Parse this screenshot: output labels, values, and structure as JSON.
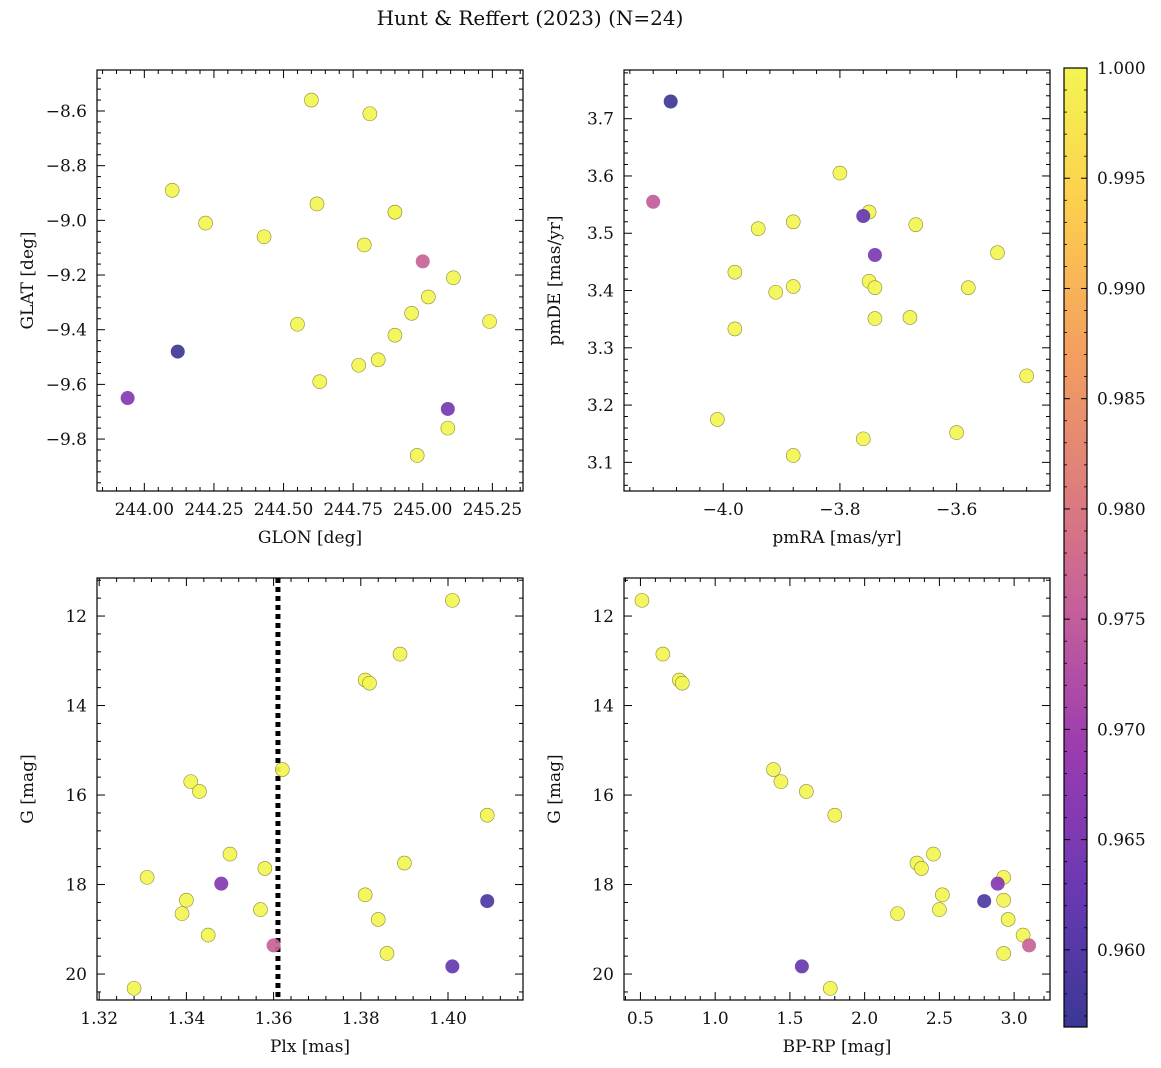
{
  "figure_title": "Hunt & Reffert (2023) (N=24)",
  "colorbar": {
    "min": 0.9565,
    "max": 1.0,
    "ticks": [
      0.96,
      0.965,
      0.97,
      0.975,
      0.98,
      0.985,
      0.99,
      0.995,
      1.0
    ],
    "tick_labels": [
      "0.960",
      "0.965",
      "0.970",
      "0.975",
      "0.980",
      "0.985",
      "0.990",
      "0.995",
      "1.000"
    ],
    "colormap": "plasma",
    "cmap_stops": [
      "#3a3894",
      "#6a39b3",
      "#9a3bb0",
      "#c35e9c",
      "#e0807a",
      "#f4a25e",
      "#fdce4e",
      "#f3f552"
    ]
  },
  "chart_data": [
    {
      "type": "scatter",
      "id": "p1",
      "xlabel": "GLON [deg]",
      "ylabel": "GLAT [deg]",
      "xlim": [
        243.83,
        245.36
      ],
      "ylim": [
        -9.99,
        -8.45
      ],
      "yinvert": false,
      "xticks": [
        244.0,
        244.25,
        244.5,
        244.75,
        245.0,
        245.25
      ],
      "xtick_labels": [
        "244.00",
        "244.25",
        "244.50",
        "244.75",
        "245.00",
        "245.25"
      ],
      "yticks": [
        -9.8,
        -9.6,
        -9.4,
        -9.2,
        -9.0,
        -8.8,
        -8.6
      ],
      "ytick_labels": [
        "−9.8",
        "−9.6",
        "−9.4",
        "−9.2",
        "−9.0",
        "−8.8",
        "−8.6"
      ],
      "x": [
        244.6,
        244.81,
        244.1,
        244.22,
        244.62,
        244.9,
        244.43,
        244.79,
        245.0,
        245.11,
        245.02,
        244.55,
        244.96,
        244.9,
        244.84,
        244.77,
        244.63,
        245.24,
        244.12,
        243.94,
        245.09,
        245.09,
        244.98,
        244.9
      ],
      "y": [
        -8.56,
        -8.61,
        -8.89,
        -9.01,
        -8.94,
        -8.97,
        -9.06,
        -9.09,
        -9.15,
        -9.21,
        -9.28,
        -9.38,
        -9.34,
        -9.42,
        -9.51,
        -9.53,
        -9.59,
        -9.37,
        -9.48,
        -9.65,
        -9.69,
        -9.76,
        -9.86,
        -8.97
      ],
      "c": [
        1.0,
        1.0,
        1.0,
        1.0,
        1.0,
        1.0,
        1.0,
        1.0,
        0.976,
        1.0,
        1.0,
        1.0,
        1.0,
        1.0,
        1.0,
        1.0,
        1.0,
        1.0,
        0.957,
        0.966,
        0.964,
        1.0,
        1.0,
        1.0
      ]
    },
    {
      "type": "scatter",
      "id": "p2",
      "xlabel": "pmRA [mas/yr]",
      "ylabel": "pmDE [mas/yr]",
      "xlim": [
        -4.17,
        -3.44
      ],
      "ylim": [
        3.05,
        3.785
      ],
      "yinvert": false,
      "xticks": [
        -4.0,
        -3.8,
        -3.6
      ],
      "xtick_labels": [
        "−4.0",
        "−3.8",
        "−3.6"
      ],
      "yticks": [
        3.1,
        3.2,
        3.3,
        3.4,
        3.5,
        3.6,
        3.7
      ],
      "ytick_labels": [
        "3.1",
        "3.2",
        "3.3",
        "3.4",
        "3.5",
        "3.6",
        "3.7"
      ],
      "x": [
        -4.09,
        -4.12,
        -3.8,
        -3.76,
        -3.75,
        -3.74,
        -3.94,
        -3.88,
        -3.67,
        -3.98,
        -3.91,
        -3.88,
        -3.75,
        -3.74,
        -3.74,
        -3.53,
        -3.58,
        -3.68,
        -3.98,
        -3.48,
        -4.01,
        -3.6,
        -3.76,
        -3.88
      ],
      "y": [
        3.73,
        3.555,
        3.605,
        3.53,
        3.537,
        3.462,
        3.508,
        3.52,
        3.515,
        3.432,
        3.397,
        3.407,
        3.416,
        3.405,
        3.351,
        3.466,
        3.405,
        3.353,
        3.333,
        3.251,
        3.175,
        3.152,
        3.141,
        3.112
      ],
      "c": [
        0.957,
        0.975,
        1.0,
        0.962,
        1.0,
        0.965,
        1.0,
        1.0,
        1.0,
        1.0,
        1.0,
        1.0,
        1.0,
        1.0,
        1.0,
        1.0,
        1.0,
        1.0,
        1.0,
        1.0,
        1.0,
        1.0,
        1.0,
        1.0
      ]
    },
    {
      "type": "scatter",
      "id": "p3",
      "xlabel": "Plx [mas]",
      "ylabel": "G [mag]",
      "xlim": [
        1.3195,
        1.4172
      ],
      "ylim": [
        20.58,
        11.15
      ],
      "yinvert": true,
      "vline": 1.361,
      "xticks": [
        1.32,
        1.34,
        1.36,
        1.38,
        1.4
      ],
      "xtick_labels": [
        "1.32",
        "1.34",
        "1.36",
        "1.38",
        "1.40"
      ],
      "yticks": [
        12,
        14,
        16,
        18,
        20
      ],
      "ytick_labels": [
        "12",
        "14",
        "16",
        "18",
        "20"
      ],
      "x": [
        1.401,
        1.389,
        1.381,
        1.382,
        1.362,
        1.341,
        1.343,
        1.409,
        1.35,
        1.39,
        1.358,
        1.331,
        1.34,
        1.348,
        1.381,
        1.409,
        1.339,
        1.357,
        1.384,
        1.345,
        1.36,
        1.386,
        1.401,
        1.328
      ],
      "y": [
        11.65,
        12.85,
        13.43,
        13.5,
        15.43,
        15.7,
        15.92,
        16.45,
        17.32,
        17.52,
        17.64,
        17.84,
        18.35,
        17.98,
        18.23,
        18.37,
        18.65,
        18.56,
        18.78,
        19.13,
        19.36,
        19.54,
        19.83,
        20.32
      ],
      "c": [
        1.0,
        1.0,
        1.0,
        1.0,
        1.0,
        1.0,
        1.0,
        1.0,
        1.0,
        1.0,
        1.0,
        1.0,
        1.0,
        0.966,
        1.0,
        0.959,
        1.0,
        1.0,
        1.0,
        1.0,
        0.976,
        1.0,
        0.962,
        1.0
      ]
    },
    {
      "type": "scatter",
      "id": "p4",
      "xlabel": "BP-RP [mag]",
      "ylabel": "G [mag]",
      "xlim": [
        0.39,
        3.24
      ],
      "ylim": [
        20.58,
        11.15
      ],
      "yinvert": true,
      "xticks": [
        0.5,
        1.0,
        1.5,
        2.0,
        2.5,
        3.0
      ],
      "xtick_labels": [
        "0.5",
        "1.0",
        "1.5",
        "2.0",
        "2.5",
        "3.0"
      ],
      "yticks": [
        12,
        14,
        16,
        18,
        20
      ],
      "ytick_labels": [
        "12",
        "14",
        "16",
        "18",
        "20"
      ],
      "x": [
        0.51,
        0.65,
        0.76,
        0.78,
        1.39,
        1.44,
        1.61,
        1.8,
        2.46,
        2.35,
        2.38,
        2.93,
        2.93,
        2.89,
        2.52,
        2.8,
        2.22,
        2.5,
        2.96,
        3.06,
        3.1,
        2.93,
        1.58,
        1.77
      ],
      "y": [
        11.65,
        12.85,
        13.43,
        13.5,
        15.43,
        15.7,
        15.92,
        16.45,
        17.32,
        17.52,
        17.64,
        17.84,
        18.35,
        17.98,
        18.23,
        18.37,
        18.65,
        18.56,
        18.78,
        19.13,
        19.36,
        19.54,
        19.83,
        20.32
      ],
      "c": [
        1.0,
        1.0,
        1.0,
        1.0,
        1.0,
        1.0,
        1.0,
        1.0,
        1.0,
        1.0,
        1.0,
        1.0,
        1.0,
        0.966,
        1.0,
        0.959,
        1.0,
        1.0,
        1.0,
        1.0,
        0.976,
        1.0,
        0.962,
        1.0
      ]
    }
  ]
}
